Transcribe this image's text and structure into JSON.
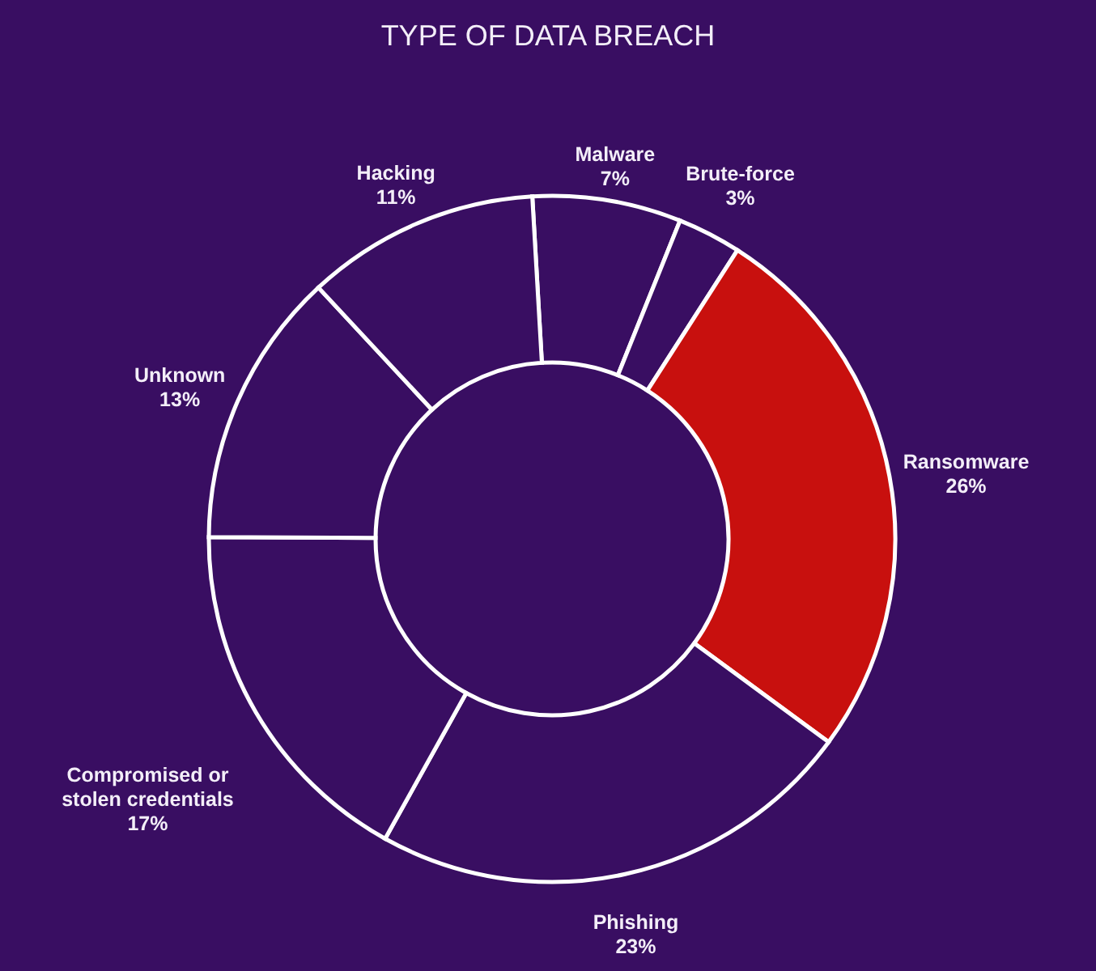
{
  "chart_data": {
    "type": "donut",
    "title": "TYPE OF DATA BREACH",
    "categories": [
      "Malware",
      "Brute-force",
      "Ransomware",
      "Phishing",
      "Compromised or stolen credentials",
      "Unknown",
      "Hacking"
    ],
    "values": [
      7,
      3,
      26,
      23,
      17,
      13,
      11
    ],
    "colors": [
      "#390e62",
      "#390e62",
      "#c8100e",
      "#390e62",
      "#390e62",
      "#390e62",
      "#390e62"
    ],
    "value_labels": [
      "7%",
      "3%",
      "26%",
      "23%",
      "17%",
      "13%",
      "11%"
    ]
  }
}
